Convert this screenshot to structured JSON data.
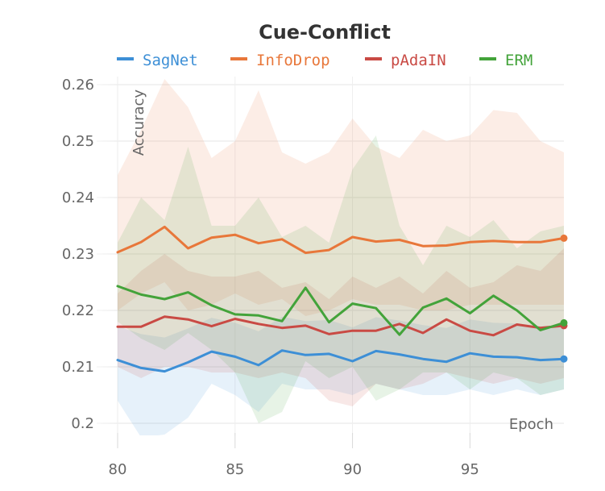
{
  "chart_data": {
    "type": "line",
    "title": "Cue-Conflict",
    "xlabel": "Epoch",
    "ylabel": "Accuracy",
    "xlim": [
      79.5,
      99
    ],
    "ylim": [
      0.2,
      0.262
    ],
    "xticks": [
      80,
      85,
      90,
      95
    ],
    "yticks": [
      0.2,
      0.21,
      0.22,
      0.23,
      0.24,
      0.25,
      0.26
    ],
    "ytick_labels": [
      "0.2",
      "0.21",
      "0.22",
      "0.23",
      "0.24",
      "0.25",
      "0.26"
    ],
    "grid": true,
    "legend_position": "top",
    "x": [
      80,
      81,
      82,
      83,
      84,
      85,
      86,
      87,
      88,
      89,
      90,
      91,
      92,
      93,
      94,
      95,
      96,
      97,
      98,
      99
    ],
    "series": [
      {
        "name": "SagNet",
        "color": "#3d8fd6",
        "values": [
          0.2112,
          0.2098,
          0.2092,
          0.2108,
          0.2127,
          0.2118,
          0.2103,
          0.2129,
          0.2121,
          0.2123,
          0.211,
          0.2128,
          0.2122,
          0.2114,
          0.2109,
          0.2124,
          0.2118,
          0.2117,
          0.2112,
          0.2114
        ],
        "upper": [
          0.2172,
          0.2158,
          0.2152,
          0.2168,
          0.2187,
          0.2178,
          0.2163,
          0.2189,
          0.2181,
          0.2183,
          0.217,
          0.2188,
          0.2182,
          0.2174,
          0.2169,
          0.2184,
          0.2178,
          0.2177,
          0.2172,
          0.2174
        ],
        "lower": [
          0.204,
          0.1975,
          0.198,
          0.201,
          0.207,
          0.205,
          0.202,
          0.207,
          0.206,
          0.206,
          0.205,
          0.207,
          0.206,
          0.205,
          0.205,
          0.206,
          0.205,
          0.206,
          0.205,
          0.206
        ]
      },
      {
        "name": "InfoDrop",
        "color": "#e8773a",
        "values": [
          0.2303,
          0.2321,
          0.2348,
          0.231,
          0.2329,
          0.2334,
          0.2319,
          0.2326,
          0.2302,
          0.2307,
          0.233,
          0.2322,
          0.2325,
          0.2314,
          0.2315,
          0.2321,
          0.2323,
          0.2321,
          0.2321,
          0.2328
        ],
        "upper": [
          0.244,
          0.252,
          0.261,
          0.256,
          0.247,
          0.25,
          0.259,
          0.248,
          0.246,
          0.248,
          0.254,
          0.249,
          0.247,
          0.252,
          0.25,
          0.251,
          0.2555,
          0.255,
          0.25,
          0.248
        ],
        "lower": [
          0.22,
          0.223,
          0.225,
          0.22,
          0.221,
          0.223,
          0.221,
          0.222,
          0.219,
          0.22,
          0.222,
          0.221,
          0.221,
          0.22,
          0.22,
          0.221,
          0.221,
          0.221,
          0.221,
          0.221
        ]
      },
      {
        "name": "pAdaIN",
        "color": "#c94a44",
        "values": [
          0.2171,
          0.2171,
          0.2189,
          0.2184,
          0.2172,
          0.2185,
          0.2176,
          0.2169,
          0.2173,
          0.2158,
          0.2164,
          0.2164,
          0.2176,
          0.216,
          0.2184,
          0.2164,
          0.2156,
          0.2175,
          0.2169,
          0.2173
        ],
        "upper": [
          0.223,
          0.227,
          0.23,
          0.227,
          0.226,
          0.226,
          0.227,
          0.224,
          0.225,
          0.222,
          0.226,
          0.224,
          0.226,
          0.223,
          0.227,
          0.224,
          0.225,
          0.228,
          0.227,
          0.231
        ],
        "lower": [
          0.21,
          0.208,
          0.21,
          0.21,
          0.209,
          0.209,
          0.208,
          0.209,
          0.208,
          0.204,
          0.203,
          0.207,
          0.206,
          0.207,
          0.209,
          0.208,
          0.207,
          0.208,
          0.207,
          0.208
        ]
      },
      {
        "name": "ERM",
        "color": "#43a33a",
        "values": [
          0.2243,
          0.2228,
          0.222,
          0.2232,
          0.2209,
          0.2193,
          0.2191,
          0.2181,
          0.224,
          0.2179,
          0.2212,
          0.2204,
          0.2157,
          0.2205,
          0.2221,
          0.2195,
          0.2226,
          0.22,
          0.2165,
          0.2178
        ],
        "upper": [
          0.232,
          0.24,
          0.236,
          0.249,
          0.235,
          0.235,
          0.24,
          0.233,
          0.235,
          0.232,
          0.245,
          0.251,
          0.235,
          0.228,
          0.235,
          0.233,
          0.236,
          0.231,
          0.234,
          0.235
        ],
        "lower": [
          0.218,
          0.215,
          0.213,
          0.216,
          0.213,
          0.209,
          0.2,
          0.202,
          0.211,
          0.208,
          0.21,
          0.204,
          0.206,
          0.209,
          0.209,
          0.206,
          0.209,
          0.208,
          0.205,
          0.206
        ]
      }
    ]
  }
}
